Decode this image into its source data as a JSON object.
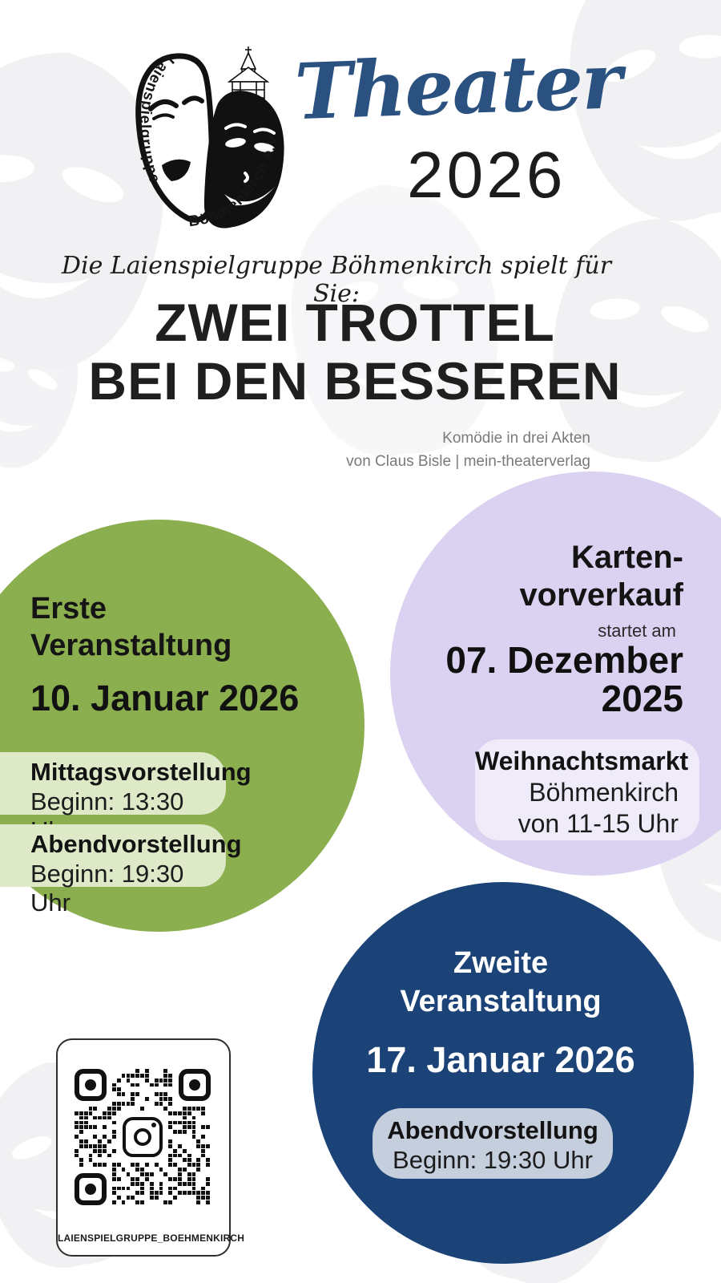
{
  "poster": {
    "logo": {
      "curved_text_left": "Laienspielgruppe",
      "curved_text_right": "Böhmenkirch e.V.",
      "masks_icon": "theater-masks-icon",
      "church_icon": "church-icon"
    },
    "brand_script": "Theater",
    "brand_year": "2026",
    "tagline": "Die Laienspielgruppe Böhmenkirch spielt für Sie:",
    "title_line1": "ZWEI TROTTEL",
    "title_line2": "BEI DEN BESSEREN",
    "credit_line1": "Komödie in drei Akten",
    "credit_line2": "von Claus Bisle | mein-theaterverlag"
  },
  "first_event": {
    "label_line1": "Erste",
    "label_line2": "Veranstaltung",
    "date": "10. Januar 2026",
    "shows": [
      {
        "name": "Mittagsvorstellung",
        "time": "Beginn: 13:30 Uhr"
      },
      {
        "name": "Abendvorstellung",
        "time": "Beginn: 19:30 Uhr"
      }
    ]
  },
  "presale": {
    "label_line1": "Karten-",
    "label_line2": "vorverkauf",
    "starts_text": "startet am",
    "date_line1": "07. Dezember",
    "date_line2": "2025",
    "venue": {
      "name": "Weihnachtsmarkt",
      "place": "Böhmenkirch",
      "time": "von 11-15 Uhr"
    }
  },
  "second_event": {
    "label_line1": "Zweite",
    "label_line2": "Veranstaltung",
    "date": "17. Januar 2026",
    "shows": [
      {
        "name": "Abendvorstellung",
        "time": "Beginn: 19:30 Uhr"
      }
    ]
  },
  "qr_card": {
    "label": "LAIENSPIELGRUPPE_BOEHMENKIRCH",
    "center_icon": "instagram-icon"
  },
  "colors": {
    "green_circle": "#8bae4e",
    "green_pill": "#dee9c8",
    "purple_circle": "#dbd1f0",
    "purple_pill": "#efebf9",
    "blue_circle": "#1c4377",
    "blue_pill": "#c5cedc",
    "brand_blue": "#2a5180",
    "text_dark": "#1e1e1e",
    "credit_gray": "#7a7a7a"
  }
}
